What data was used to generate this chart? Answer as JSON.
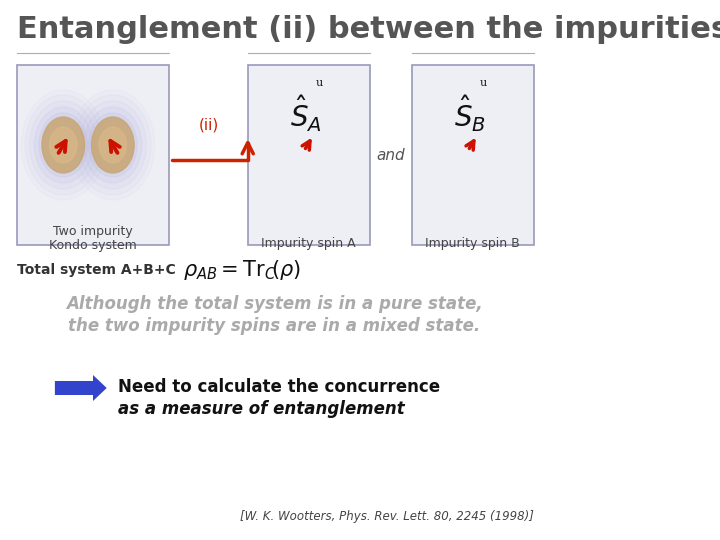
{
  "title": "Entanglement (ii) between the impurities",
  "title_color": "#555555",
  "title_fontsize": 22,
  "bg_color": "#ffffff",
  "box1_label_line1": "Two impurity",
  "box1_label_line2": "Kondo system",
  "box2_label": "Impurity spin A",
  "box3_label": "Impurity spin B",
  "ii_label": "(ii)",
  "and_label": "and",
  "total_system_label": "Total system A+B+C",
  "italic_text1": "Although the total system is in a pure state,",
  "italic_text2": "the two impurity spins are in a mixed state.",
  "bold_text1": "Need to calculate the concurrence",
  "bold_text2": "as a measure of entanglement",
  "citation": "[W. K. Wootters, Phys. Rev. Lett. 80, 2245 (1998)]",
  "box_color": "#eeeef5",
  "box_edge_color": "#9999bb",
  "arrow_color": "#cc2200",
  "blue_arrow_color": "#3344cc",
  "spin_arrow_color": "#cc1100",
  "text_gray": "#aaaaaa",
  "text_dark": "#333333",
  "kondo_cloud_color": "#aaaadd",
  "kondo_core_color": "#c8a878",
  "kondo_core2_color": "#d8b888"
}
